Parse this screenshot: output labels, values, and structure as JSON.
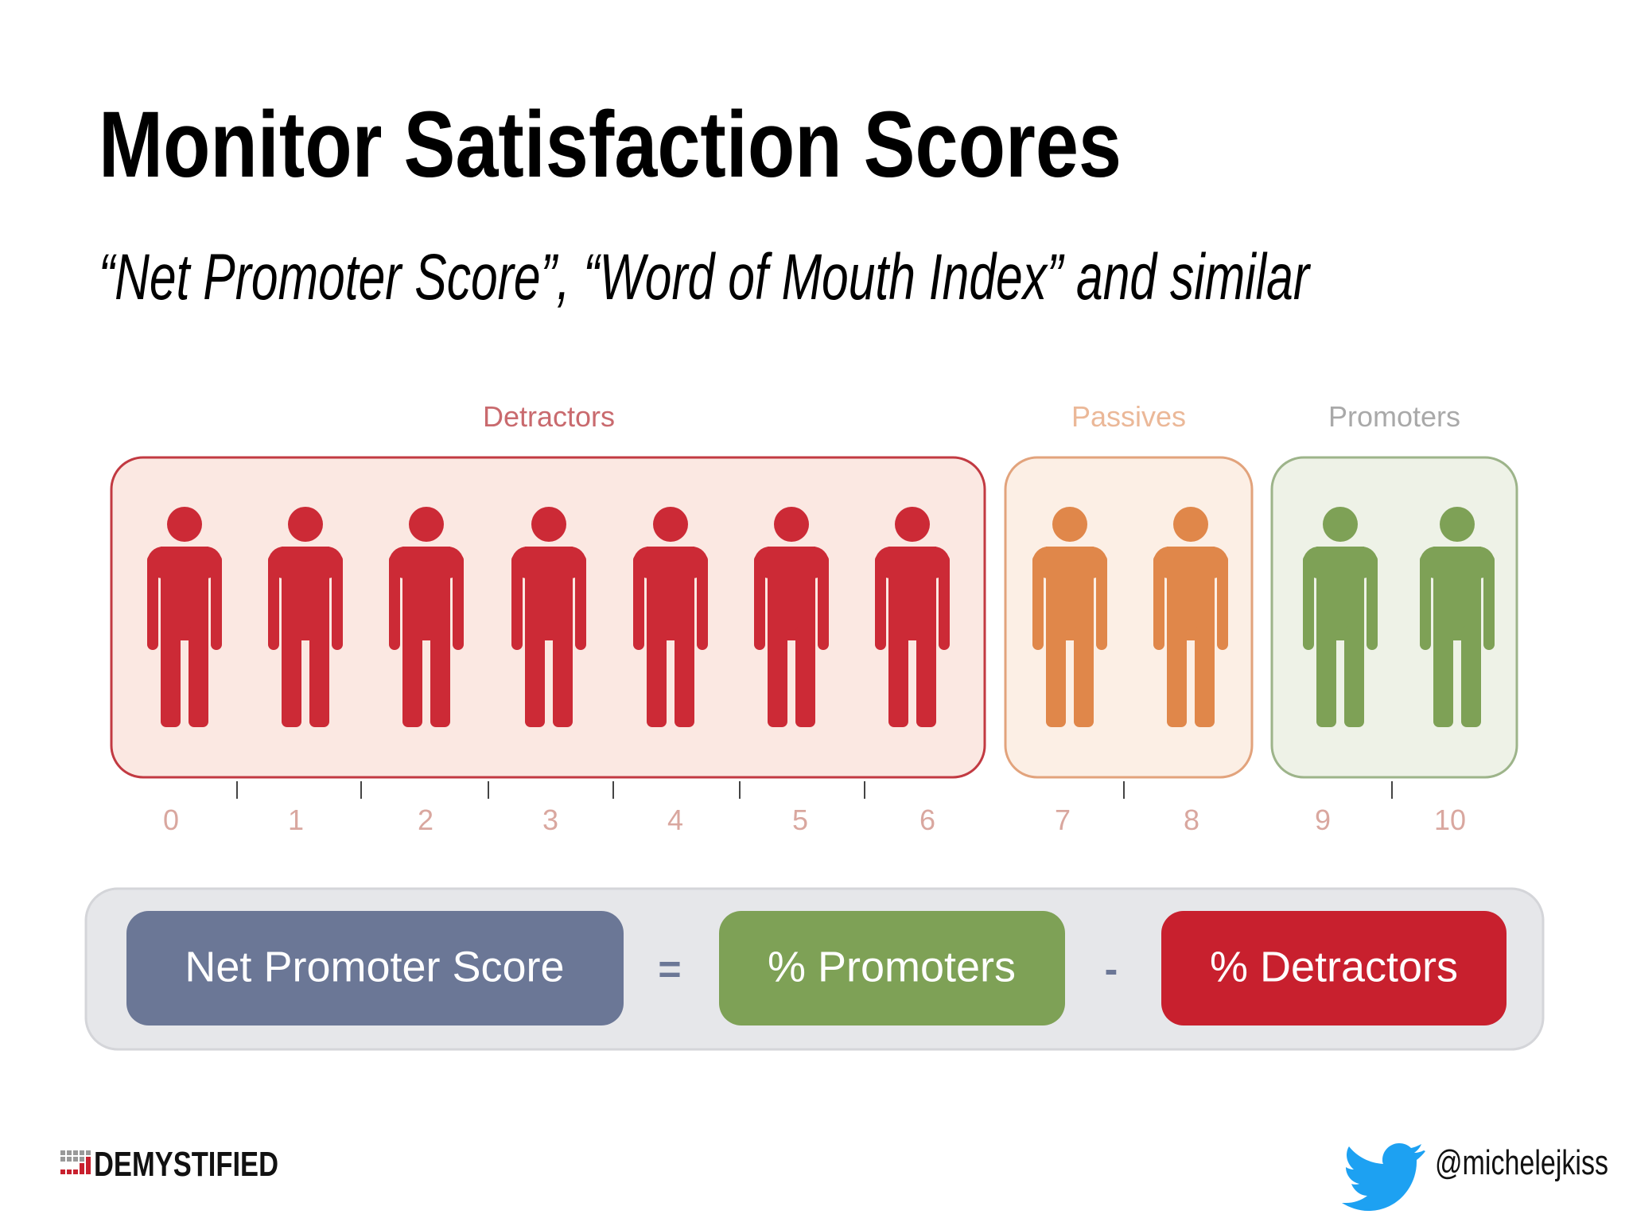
{
  "header": {
    "title": "Monitor Satisfaction Scores",
    "subtitle": "“Net Promoter Score”, “Word of Mouth Index” and similar"
  },
  "groups": [
    {
      "label": "Detractors",
      "scores": [
        0,
        1,
        2,
        3,
        4,
        5,
        6
      ]
    },
    {
      "label": "Passives",
      "scores": [
        7,
        8
      ]
    },
    {
      "label": "Promoters",
      "scores": [
        9,
        10
      ]
    }
  ],
  "formula": {
    "result": "Net Promoter Score",
    "equals": "=",
    "promoters": "% Promoters",
    "minus": "-",
    "detractors": "% Detractors"
  },
  "footer": {
    "brand": "DEMYSTIFIED",
    "handle": "@michelejkiss"
  }
}
